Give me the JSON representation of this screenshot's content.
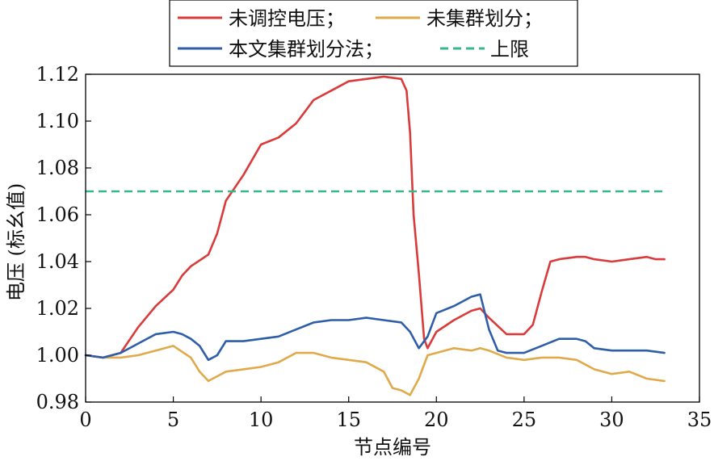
{
  "chart_data": {
    "type": "line",
    "xlabel": "节点编号",
    "ylabel": "电压 (标幺值)",
    "xlim": [
      0,
      35
    ],
    "ylim": [
      0.98,
      1.12
    ],
    "xticks": [
      0,
      5,
      10,
      15,
      20,
      25,
      30,
      35
    ],
    "xtick_labels": [
      "0",
      "5",
      "10",
      "15",
      "20",
      "25",
      "30",
      "35"
    ],
    "yticks": [
      0.98,
      1.0,
      1.02,
      1.04,
      1.06,
      1.08,
      1.1,
      1.12
    ],
    "ytick_labels": [
      "0.98",
      "1.00",
      "1.02",
      "1.04",
      "1.06",
      "1.08",
      "1.10",
      "1.12"
    ],
    "grid": false,
    "legend_position": "top-center",
    "series": [
      {
        "name": "未调控电压；",
        "color": "#d93a3a",
        "style": "solid",
        "x": [
          0,
          1,
          2,
          3,
          4,
          5,
          5.5,
          6,
          7,
          7.5,
          8,
          9,
          10,
          11,
          12,
          13,
          14,
          15,
          16,
          17,
          18,
          18.3,
          18.5,
          18.7,
          19,
          19.3,
          19.5,
          20,
          21,
          22,
          22.5,
          23,
          24,
          25,
          25.5,
          26,
          26.5,
          27,
          28,
          28.5,
          29,
          30,
          31,
          32,
          32.5,
          33
        ],
        "y": [
          1.0,
          0.999,
          1.001,
          1.012,
          1.021,
          1.028,
          1.034,
          1.038,
          1.043,
          1.052,
          1.066,
          1.077,
          1.09,
          1.093,
          1.099,
          1.109,
          1.113,
          1.117,
          1.118,
          1.119,
          1.118,
          1.113,
          1.095,
          1.06,
          1.035,
          1.007,
          1.003,
          1.01,
          1.015,
          1.019,
          1.02,
          1.016,
          1.009,
          1.009,
          1.013,
          1.027,
          1.04,
          1.041,
          1.042,
          1.042,
          1.041,
          1.04,
          1.041,
          1.042,
          1.041,
          1.041
        ]
      },
      {
        "name": "未集群划分；",
        "color": "#e0a94a",
        "style": "solid",
        "x": [
          0,
          1,
          2,
          3,
          4,
          5,
          6,
          6.5,
          7,
          7.5,
          8,
          9,
          10,
          11,
          12,
          13,
          14,
          15,
          16,
          17,
          17.5,
          18,
          18.5,
          19,
          19.5,
          20,
          21,
          22,
          22.5,
          23,
          24,
          25,
          26,
          27,
          28,
          29,
          30,
          31,
          32,
          33
        ],
        "y": [
          1.0,
          0.999,
          0.999,
          1.0,
          1.002,
          1.004,
          0.999,
          0.993,
          0.989,
          0.991,
          0.993,
          0.994,
          0.995,
          0.997,
          1.001,
          1.001,
          0.999,
          0.998,
          0.997,
          0.993,
          0.986,
          0.985,
          0.983,
          0.99,
          1.0,
          1.001,
          1.003,
          1.002,
          1.003,
          1.002,
          0.999,
          0.998,
          0.999,
          0.999,
          0.998,
          0.994,
          0.992,
          0.993,
          0.99,
          0.989
        ]
      },
      {
        "name": "本文集群划分法；",
        "color": "#2e5ea8",
        "style": "solid",
        "x": [
          0,
          1,
          2,
          3,
          4,
          5,
          5.5,
          6,
          6.5,
          7,
          7.5,
          8,
          9,
          10,
          11,
          12,
          13,
          14,
          15,
          16,
          17,
          18,
          18.5,
          19,
          19.5,
          20,
          21,
          22,
          22.5,
          23,
          23.5,
          24,
          25,
          26,
          27,
          28,
          28.5,
          29,
          30,
          31,
          32,
          33
        ],
        "y": [
          1.0,
          0.999,
          1.001,
          1.005,
          1.009,
          1.01,
          1.009,
          1.007,
          1.004,
          0.998,
          1.0,
          1.006,
          1.006,
          1.007,
          1.008,
          1.011,
          1.014,
          1.015,
          1.015,
          1.016,
          1.015,
          1.014,
          1.01,
          1.003,
          1.008,
          1.018,
          1.021,
          1.025,
          1.026,
          1.011,
          1.002,
          1.001,
          1.001,
          1.004,
          1.007,
          1.007,
          1.006,
          1.003,
          1.002,
          1.002,
          1.002,
          1.001
        ]
      },
      {
        "name": "上限",
        "color": "#3bb58a",
        "style": "dashed",
        "x": [
          0,
          33
        ],
        "y": [
          1.07,
          1.07
        ]
      }
    ]
  }
}
